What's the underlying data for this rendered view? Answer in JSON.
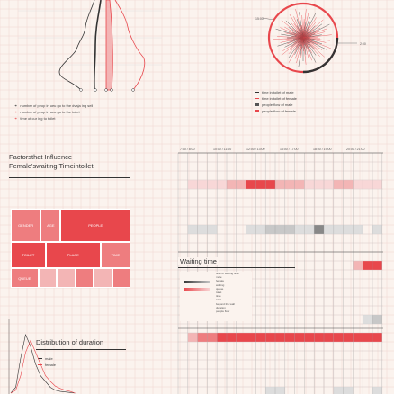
{
  "colors": {
    "red": "#e8474c",
    "pink": "#f3b5b5",
    "light_pink": "#f8d7d7",
    "grey": "#c8c8c8",
    "dark": "#333333",
    "grid": "#f0d4d0"
  },
  "panels": {
    "influence_title_line1": "Factorsthat Influence",
    "influence_title_line2": "Female'swaiting Timeintoilet",
    "waiting_title": "Waiting time",
    "duration_title": "Distribution of duration"
  },
  "legends": {
    "profile": [
      {
        "label": "number of peop in ueu go to the dvaja ing sell",
        "icon": "circle-pair-icon"
      },
      {
        "label": "number of peop in ueu go to the toilet",
        "icon": "circle-pair-icon"
      },
      {
        "label": "time of cur ing to toilet",
        "icon": "circle-pair-icon"
      }
    ],
    "radial": [
      {
        "label": "time in toilet of male",
        "color": "#333333"
      },
      {
        "label": "time in toilet of female",
        "color": "#e8474c"
      },
      {
        "label": "people flow of male",
        "color": "#555555"
      },
      {
        "label": "people flow of female",
        "color": "#e8474c"
      }
    ],
    "duration": [
      {
        "label": "male",
        "color": "#333333"
      },
      {
        "label": "female",
        "color": "#e8474c"
      }
    ],
    "waiting": [
      "time of waiting time",
      "male",
      "female",
      "waiting",
      "queue",
      "toilet",
      "time",
      "total",
      "beyond the wall",
      "duration",
      "people flow"
    ]
  },
  "timeline_labels": [
    "7:00 / 8:00",
    "10:00 / 11:00",
    "12:00 / 13:00",
    "16:00 / 17:00",
    "18:00 / 19:00",
    "20:00 / 21:00"
  ],
  "radial_labels": {
    "top_left": "15:00",
    "right": "2:00"
  },
  "chart_data": [
    {
      "type": "treemap",
      "title": "",
      "cells": [
        {
          "label": "GENDER",
          "value": 6,
          "tone": "pink"
        },
        {
          "label": "AGE",
          "value": 4,
          "tone": "pink"
        },
        {
          "label": "PEOPLE",
          "value": 14,
          "tone": "red"
        },
        {
          "label": "TOILET",
          "value": 7,
          "tone": "red"
        },
        {
          "label": "PLACE",
          "value": 11,
          "tone": "red"
        },
        {
          "label": "TIME",
          "value": 6,
          "tone": "pink"
        },
        {
          "label": "QUEUE",
          "value": 3,
          "tone": "pink"
        },
        {
          "label": "",
          "value": 2,
          "tone": "light_pink"
        },
        {
          "label": "",
          "value": 2,
          "tone": "light_pink"
        },
        {
          "label": "",
          "value": 2,
          "tone": "pink"
        },
        {
          "label": "",
          "value": 2,
          "tone": "light_pink"
        },
        {
          "label": "",
          "value": 2,
          "tone": "pink"
        }
      ]
    },
    {
      "type": "line",
      "title": "",
      "xlabel": "",
      "ylabel": "",
      "series": [
        {
          "name": "male",
          "values": [
            0,
            1,
            6,
            10,
            8,
            5,
            3,
            2,
            1,
            0.5,
            0.3,
            0.2,
            0.1,
            0
          ]
        },
        {
          "name": "female",
          "values": [
            0,
            0.5,
            3,
            7,
            9,
            7,
            5,
            3,
            2,
            1.2,
            0.8,
            0.5,
            0.3,
            0
          ]
        }
      ]
    },
    {
      "type": "heatmap",
      "title": "",
      "rows": [
        {
          "tone": "light_pink",
          "values": [
            0,
            1,
            1,
            1,
            1,
            2,
            2,
            3,
            3,
            3,
            2,
            2,
            2,
            1,
            1,
            1,
            2,
            2,
            1,
            1,
            1
          ]
        },
        {
          "tone": "grey",
          "values": [
            0,
            1,
            1,
            1,
            0,
            0,
            0,
            1,
            1,
            2,
            2,
            2,
            1,
            1,
            3,
            1,
            1,
            1,
            1,
            0,
            1
          ]
        },
        {
          "tone": "red",
          "values": [
            0,
            0,
            0,
            0,
            0,
            0,
            0,
            0,
            0,
            0,
            0,
            0,
            0,
            0,
            0,
            0,
            0,
            0,
            1,
            3,
            3
          ]
        },
        {
          "tone": "grey",
          "values": [
            0,
            0,
            0,
            0,
            0,
            0,
            0,
            0,
            0,
            0,
            0,
            0,
            0,
            0,
            0,
            0,
            0,
            0,
            0,
            1,
            2
          ]
        },
        {
          "tone": "red",
          "values": [
            0,
            1,
            2,
            2,
            3,
            3,
            3,
            3,
            3,
            3,
            3,
            3,
            3,
            3,
            3,
            3,
            3,
            3,
            3,
            3,
            3
          ]
        },
        {
          "tone": "grey",
          "values": [
            0,
            0,
            0,
            0,
            0,
            0,
            0,
            0,
            0,
            1,
            1,
            0,
            0,
            0,
            0,
            0,
            1,
            1,
            0,
            0,
            1
          ]
        }
      ]
    }
  ]
}
